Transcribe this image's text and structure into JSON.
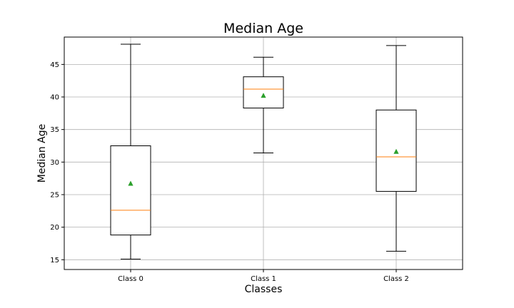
{
  "chart_data": {
    "type": "box",
    "title": "Median Age",
    "xlabel": "Classes",
    "ylabel": "Median Age",
    "categories": [
      "Class 0",
      "Class 1",
      "Class 2"
    ],
    "boxes": [
      {
        "name": "Class 0",
        "whisker_low": 15.1,
        "q1": 18.8,
        "median": 22.6,
        "q3": 32.5,
        "whisker_high": 48.1,
        "mean": 26.7
      },
      {
        "name": "Class 1",
        "whisker_low": 31.4,
        "q1": 38.3,
        "median": 41.2,
        "q3": 43.1,
        "whisker_high": 46.1,
        "mean": 40.2
      },
      {
        "name": "Class 2",
        "whisker_low": 16.3,
        "q1": 25.5,
        "median": 30.8,
        "q3": 38.0,
        "whisker_high": 47.9,
        "mean": 31.6
      }
    ],
    "ylim": [
      13.5,
      49.2
    ],
    "yticks": [
      15,
      20,
      25,
      30,
      35,
      40,
      45
    ],
    "grid": true,
    "colors": {
      "box": "#000000",
      "median": "#ff7f0e",
      "mean": "#2ca02c",
      "grid": "#b0b0b0"
    }
  }
}
